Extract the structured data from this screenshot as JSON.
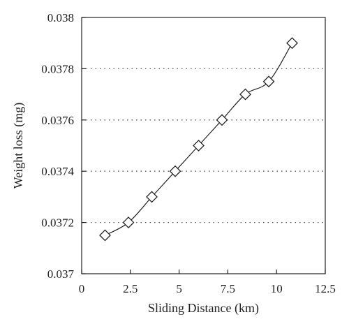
{
  "chart_data": {
    "type": "line",
    "title": "",
    "xlabel": "Sliding Distance (km)",
    "ylabel": "Weight loss (mg)",
    "xlim": [
      0,
      12.5
    ],
    "ylim": [
      0.037,
      0.038
    ],
    "x_ticks": [
      "0",
      "2.5",
      "5",
      "7.5",
      "10",
      "12.5"
    ],
    "y_ticks": [
      "0.037",
      "0.0372",
      "0.0374",
      "0.0376",
      "0.0378",
      "0.038"
    ],
    "grid": "horizontal dotted",
    "legend": "none",
    "series": [
      {
        "marker": "diamond",
        "x": [
          1.2,
          2.4,
          3.6,
          4.8,
          6.0,
          7.2,
          8.4,
          9.6,
          10.8
        ],
        "y": [
          0.03715,
          0.0372,
          0.0373,
          0.0374,
          0.0375,
          0.0376,
          0.0377,
          0.03775,
          0.0379
        ]
      }
    ]
  }
}
